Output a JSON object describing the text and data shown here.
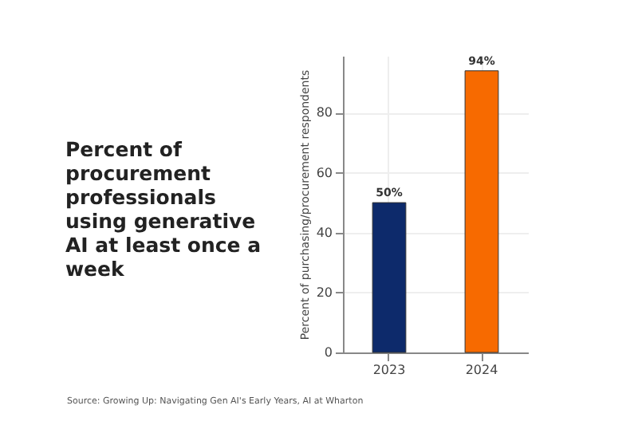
{
  "chart_data": {
    "type": "bar",
    "title": "Percent of procurement professionals using generative AI at least once a week",
    "ylabel": "Percent of purchasing/procurement respondents",
    "categories": [
      "2023",
      "2024"
    ],
    "values": [
      50,
      94
    ],
    "colors": [
      "#0d2a6b",
      "#f76a00"
    ],
    "value_labels": [
      "50%",
      "94%"
    ],
    "ylim": [
      0,
      99
    ],
    "yticks": [
      0,
      20,
      40,
      60,
      80
    ],
    "grid": true,
    "annotations": [
      "Source: Growing Up: Navigating Gen AI's Early Years, AI at Wharton"
    ]
  }
}
